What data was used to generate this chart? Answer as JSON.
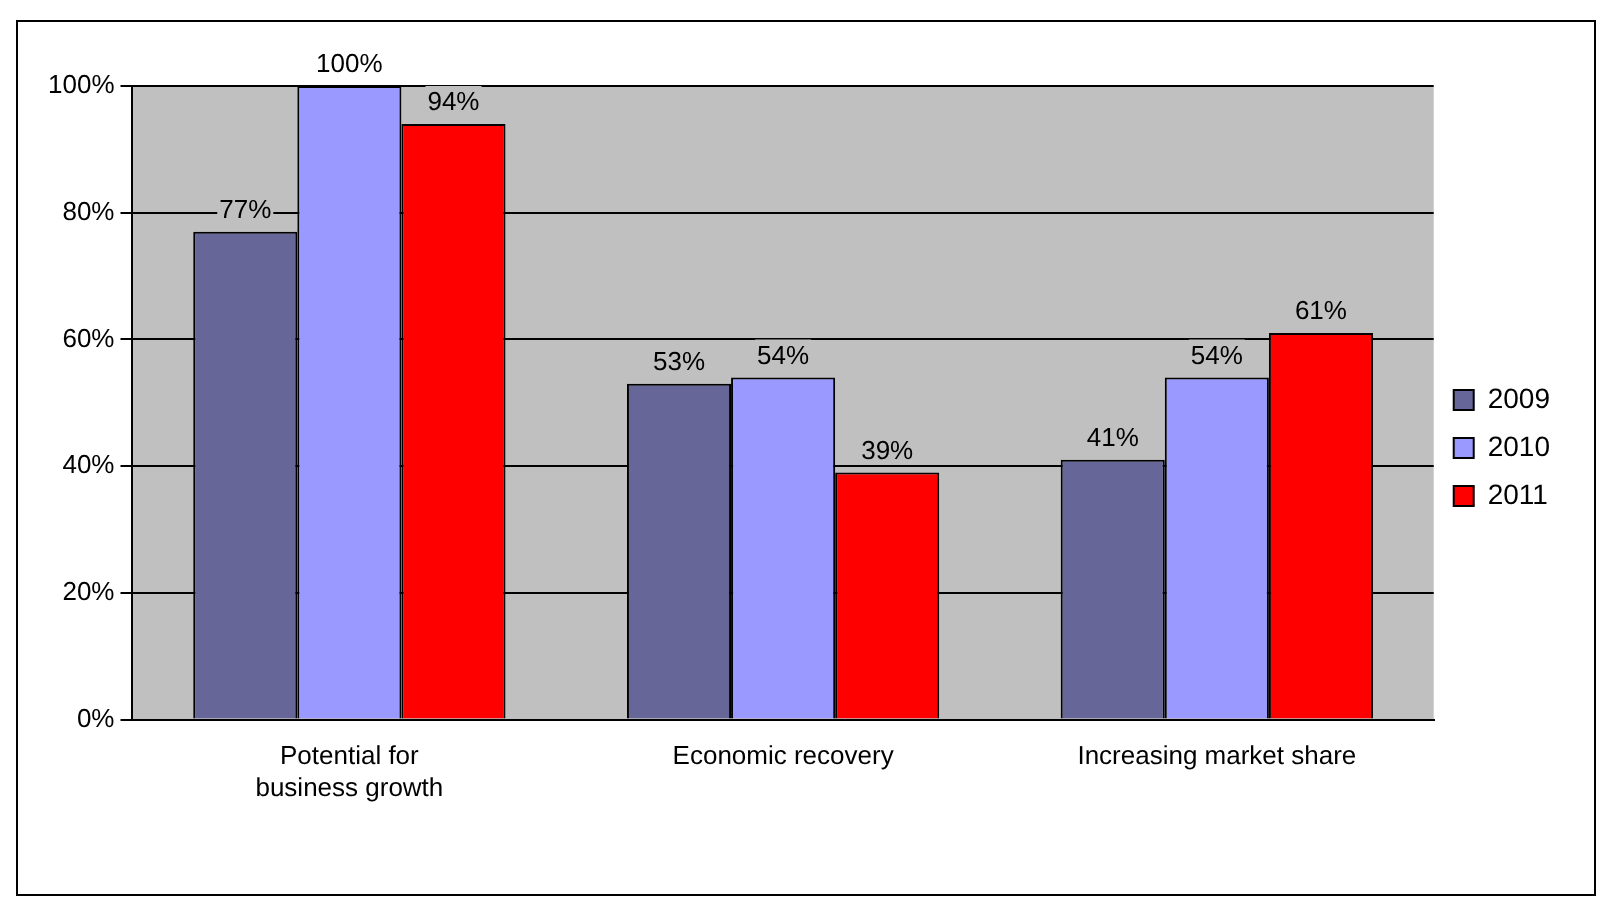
{
  "chart_data": {
    "type": "bar",
    "categories": [
      "Potential for business growth",
      "Economic recovery",
      "Increasing market share"
    ],
    "series": [
      {
        "name": "2009",
        "color": "#666699",
        "values": [
          77,
          53,
          41
        ],
        "value_labels": [
          "77%",
          "53%",
          "41%"
        ]
      },
      {
        "name": "2010",
        "color": "#9999ff",
        "values": [
          100,
          54,
          54
        ],
        "value_labels": [
          "100%",
          "54%",
          "54%"
        ]
      },
      {
        "name": "2011",
        "color": "#ff0000",
        "values": [
          94,
          39,
          61
        ],
        "value_labels": [
          "94%",
          "39%",
          "61%"
        ]
      }
    ],
    "ylim": [
      0,
      100
    ],
    "yticks": [
      {
        "value": 0,
        "label": "0%"
      },
      {
        "value": 20,
        "label": "20%"
      },
      {
        "value": 40,
        "label": "40%"
      },
      {
        "value": 60,
        "label": "60%"
      },
      {
        "value": 80,
        "label": "80%"
      },
      {
        "value": 100,
        "label": "100%"
      }
    ],
    "grid": "y",
    "legend": "right"
  }
}
